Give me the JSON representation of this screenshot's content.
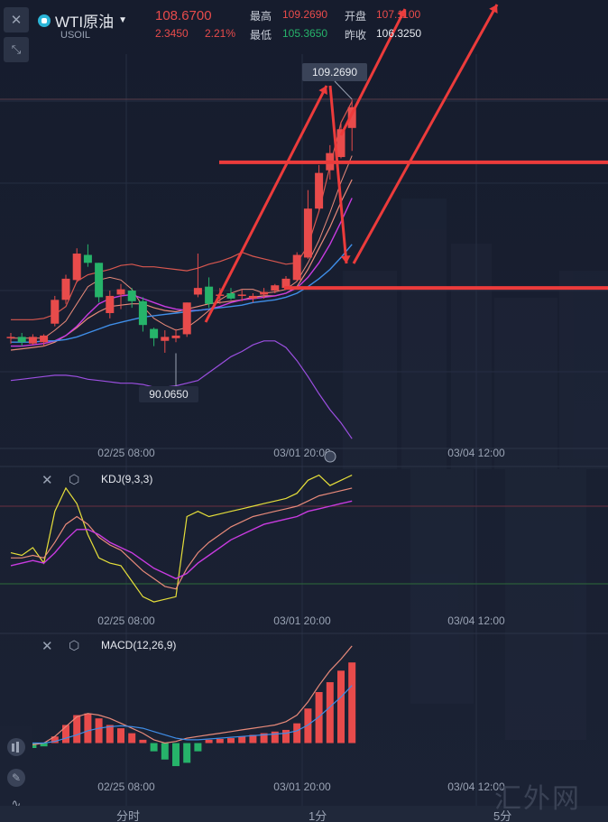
{
  "header": {
    "close_icon": "close-icon",
    "symbol_name": "WTI原油",
    "symbol_code": "USOIL",
    "price": "108.6700",
    "change": "2.3450",
    "change_pct": "2.21%",
    "high_label": "最高",
    "high_value": "109.2690",
    "low_label": "最低",
    "low_value": "105.3650",
    "open_label": "开盘",
    "open_value": "107.1100",
    "prev_label": "昨收",
    "prev_value": "106.3250"
  },
  "colors": {
    "up": "#e84b4b",
    "down": "#26b36a",
    "background": "#171d2e",
    "grid": "#262e42",
    "k_line": "#e6df3a",
    "d_line": "#e88a7a",
    "j_line": "#c83be0",
    "dif_line": "#e88a7a",
    "dea_line": "#3f8ee8"
  },
  "chart_data": [
    {
      "type": "candlestick",
      "symbol": "USOIL",
      "ohlc": [
        [
          91.2,
          91.6,
          90.8,
          91.3
        ],
        [
          91.3,
          91.6,
          90.6,
          90.9
        ],
        [
          90.8,
          91.5,
          90.7,
          91.3
        ],
        [
          90.9,
          91.5,
          90.6,
          91.4
        ],
        [
          92.3,
          94.4,
          92.1,
          94.1
        ],
        [
          94.1,
          96.0,
          93.8,
          95.7
        ],
        [
          95.6,
          98.0,
          95.4,
          97.6
        ],
        [
          97.5,
          98.3,
          96.6,
          96.9
        ],
        [
          96.9,
          96.9,
          93.9,
          94.3
        ],
        [
          93.1,
          94.8,
          92.7,
          94.4
        ],
        [
          94.5,
          95.3,
          93.4,
          94.9
        ],
        [
          94.8,
          95.0,
          93.5,
          94.0
        ],
        [
          94.0,
          94.3,
          91.7,
          92.2
        ],
        [
          91.9,
          92.0,
          90.6,
          91.2
        ],
        [
          91.0,
          91.8,
          90.1,
          91.3
        ],
        [
          91.2,
          91.9,
          90.9,
          91.4
        ],
        [
          91.5,
          93.9,
          91.3,
          93.9
        ],
        [
          94.5,
          97.6,
          94.3,
          95.0
        ],
        [
          95.1,
          95.8,
          93.5,
          93.8
        ],
        [
          94.4,
          95.0,
          93.8,
          94.5
        ],
        [
          94.6,
          95.0,
          94.1,
          94.2
        ],
        [
          94.4,
          94.9,
          94.0,
          94.5
        ],
        [
          94.2,
          94.6,
          93.9,
          94.4
        ],
        [
          94.5,
          95.0,
          94.2,
          94.7
        ],
        [
          94.8,
          95.3,
          94.6,
          95.2
        ],
        [
          95.0,
          95.9,
          94.9,
          95.7
        ],
        [
          95.6,
          97.7,
          95.5,
          97.5
        ],
        [
          97.3,
          102.4,
          97.2,
          101.0
        ],
        [
          101.0,
          104.3,
          100.9,
          103.7
        ],
        [
          103.9,
          105.8,
          103.2,
          105.2
        ],
        [
          104.9,
          107.5,
          104.8,
          107.0
        ],
        [
          107.1,
          109.269,
          105.365,
          108.67
        ]
      ],
      "boll": {
        "upper": [
          92.6,
          92.6,
          92.6,
          92.7,
          93.0,
          93.6,
          95.5,
          96.0,
          96.2,
          96.4,
          96.7,
          96.8,
          96.6,
          96.6,
          96.5,
          96.4,
          96.3,
          96.5,
          96.8,
          97.0,
          97.3,
          97.7,
          97.4,
          97.2,
          97.0,
          96.8,
          96.9,
          98.2,
          100.8,
          104.2,
          107.5,
          109.1
        ],
        "middle": [
          90.3,
          90.4,
          90.5,
          90.6,
          90.9,
          91.4,
          92.0,
          92.7,
          93.2,
          93.6,
          93.7,
          93.8,
          93.8,
          93.5,
          93.3,
          93.2,
          93.4,
          93.6,
          93.8,
          93.9,
          94.0,
          94.1,
          94.3,
          94.4,
          94.4,
          94.6,
          95.1,
          96.4,
          98.0,
          99.6,
          101.5,
          103.2
        ],
        "lower": [
          88.0,
          88.1,
          88.2,
          88.3,
          88.4,
          88.4,
          88.3,
          88.1,
          88.0,
          87.9,
          87.8,
          87.8,
          87.7,
          87.5,
          87.5,
          87.6,
          87.8,
          88.0,
          88.6,
          89.2,
          89.8,
          90.2,
          90.7,
          91.0,
          91.0,
          90.5,
          89.5,
          88.3,
          87.0,
          85.8,
          84.8,
          83.6
        ]
      },
      "ma": {
        "ma5": [
          91.2,
          91.2,
          91.2,
          91.2,
          91.8,
          92.5,
          93.8,
          95.1,
          95.6,
          95.8,
          95.6,
          94.9,
          93.6,
          92.7,
          92.2,
          91.8,
          92.0,
          92.6,
          93.3,
          94.1,
          94.6,
          94.9,
          94.9,
          94.6,
          94.7,
          94.9,
          95.5,
          96.9,
          98.6,
          100.7,
          103.0,
          105.0
        ],
        "ma10": [
          90.6,
          90.6,
          90.7,
          90.8,
          91.0,
          91.4,
          92.1,
          93.0,
          93.8,
          94.2,
          94.4,
          94.5,
          94.2,
          93.9,
          93.6,
          93.4,
          93.3,
          93.3,
          93.4,
          93.6,
          93.9,
          94.1,
          94.2,
          94.3,
          94.4,
          94.6,
          95.0,
          95.8,
          96.9,
          98.3,
          100.0,
          101.8
        ],
        "ma20": [
          90.9,
          90.9,
          90.9,
          91.0,
          91.0,
          91.1,
          91.3,
          91.6,
          91.9,
          92.2,
          92.4,
          92.6,
          92.8,
          92.9,
          93.0,
          93.1,
          93.2,
          93.3,
          93.4,
          93.5,
          93.6,
          93.7,
          93.9,
          94.0,
          94.1,
          94.3,
          94.6,
          95.1,
          95.7,
          96.4,
          97.3,
          98.3
        ]
      },
      "annotations": {
        "high_label": "109.2690",
        "low_label": "90.0650",
        "horizontal_lines": [
          104.5,
          95.0
        ],
        "arrows": "hand-drawn up/down trend arrows"
      },
      "x_tick_labels": [
        "02/25 08:00",
        "03/01 20:00",
        "03/04 12:00"
      ],
      "grid": true
    },
    {
      "type": "line",
      "name": "KDJ(9,3,3)",
      "k": [
        44,
        42,
        48,
        36,
        76,
        94,
        82,
        58,
        40,
        36,
        34,
        22,
        10,
        6,
        8,
        10,
        72,
        76,
        72,
        74,
        76,
        78,
        80,
        82,
        84,
        86,
        90,
        100,
        104,
        96,
        100,
        104
      ],
      "d": [
        40,
        40,
        42,
        40,
        52,
        66,
        72,
        66,
        56,
        50,
        46,
        38,
        30,
        24,
        18,
        16,
        32,
        44,
        52,
        58,
        64,
        68,
        72,
        74,
        76,
        78,
        80,
        84,
        88,
        90,
        92,
        94
      ],
      "j": [
        34,
        36,
        38,
        36,
        44,
        54,
        62,
        62,
        58,
        52,
        48,
        44,
        38,
        32,
        28,
        24,
        28,
        36,
        42,
        48,
        54,
        58,
        62,
        66,
        68,
        70,
        72,
        76,
        78,
        80,
        82,
        84
      ],
      "ref_lines": [
        80,
        20
      ]
    },
    {
      "type": "bar",
      "name": "MACD(12,26,9)",
      "histogram": [
        -0.05,
        -0.08,
        -0.06,
        -0.04,
        0.08,
        0.22,
        0.34,
        0.36,
        0.3,
        0.22,
        0.18,
        0.12,
        0.04,
        -0.1,
        -0.2,
        -0.28,
        -0.24,
        -0.1,
        0.04,
        0.05,
        0.06,
        0.08,
        0.1,
        0.12,
        0.14,
        0.16,
        0.24,
        0.42,
        0.62,
        0.74,
        0.88,
        0.98
      ],
      "dif": [
        0.0,
        -0.02,
        -0.02,
        0.0,
        0.08,
        0.2,
        0.32,
        0.36,
        0.34,
        0.3,
        0.24,
        0.18,
        0.12,
        0.04,
        0.0,
        0.02,
        0.06,
        0.08,
        0.1,
        0.12,
        0.14,
        0.16,
        0.18,
        0.2,
        0.22,
        0.26,
        0.34,
        0.5,
        0.7,
        0.88,
        1.02,
        1.18
      ],
      "dea": [
        0.0,
        0.0,
        0.0,
        0.0,
        0.02,
        0.06,
        0.1,
        0.15,
        0.18,
        0.2,
        0.21,
        0.2,
        0.18,
        0.14,
        0.1,
        0.06,
        0.04,
        0.04,
        0.05,
        0.06,
        0.07,
        0.08,
        0.09,
        0.1,
        0.11,
        0.12,
        0.15,
        0.22,
        0.32,
        0.44,
        0.56,
        0.7
      ]
    }
  ],
  "panels": {
    "kdj_label": "KDJ(9,3,3)",
    "macd_label": "MACD(12,26,9)"
  },
  "x_axis": {
    "ticks": [
      "02/25 08:00",
      "03/01 20:00",
      "03/04 12:00"
    ]
  },
  "tabs": {
    "fenshi": "分时",
    "one_min": "1分",
    "five_min": "5分"
  },
  "toolbar": {
    "icons": [
      "close-icon",
      "collapse-icon",
      "candle-style-icon",
      "pencil-icon",
      "indicator-icon",
      "settings-icon"
    ]
  },
  "watermark": "汇外网"
}
